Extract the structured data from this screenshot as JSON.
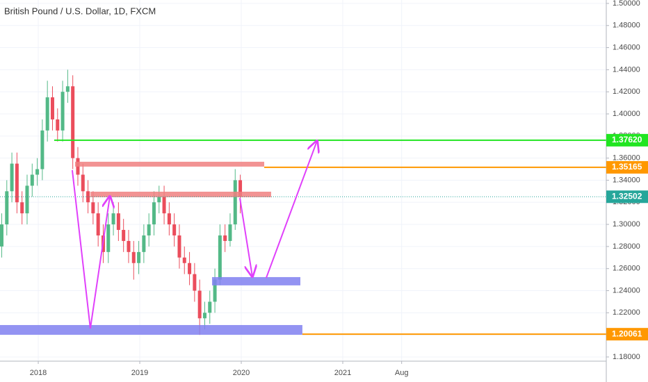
{
  "chart_data": {
    "type": "candlestick",
    "title": "British Pound / U.S. Dollar, 1D, FXCM",
    "xlim": [
      2017.623,
      2023.596
    ],
    "ylim": [
      1.1762,
      1.5031
    ],
    "grid": true,
    "up_color": "#53b987",
    "down_color": "#eb4d5c",
    "xticks": [
      2018,
      2019,
      2020,
      2021,
      {
        "value": 2021.58,
        "label": "Aug"
      }
    ],
    "yticks": [
      {
        "value": 1.18,
        "label": "1.18000"
      },
      {
        "value": 1.2,
        "label": "1.20000"
      },
      {
        "value": 1.22,
        "label": "1.22000"
      },
      {
        "value": 1.24,
        "label": "1.24000"
      },
      {
        "value": 1.26,
        "label": "1.26000"
      },
      {
        "value": 1.28,
        "label": "1.28000"
      },
      {
        "value": 1.3,
        "label": "1.30000"
      },
      {
        "value": 1.32,
        "label": "1.32000"
      },
      {
        "value": 1.34,
        "label": "1.34000"
      },
      {
        "value": 1.36,
        "label": "1.36000"
      },
      {
        "value": 1.38,
        "label": "1.38000"
      },
      {
        "value": 1.4,
        "label": "1.40000"
      },
      {
        "value": 1.42,
        "label": "1.42000"
      },
      {
        "value": 1.44,
        "label": "1.44000"
      },
      {
        "value": 1.46,
        "label": "1.46000"
      },
      {
        "value": 1.48,
        "label": "1.48000"
      },
      {
        "value": 1.5,
        "label": "1.50000"
      }
    ],
    "x": [
      2017.64,
      2017.69,
      2017.74,
      2017.79,
      2017.84,
      2017.89,
      2017.94,
      2017.99,
      2018.04,
      2018.09,
      2018.14,
      2018.19,
      2018.24,
      2018.29,
      2018.34,
      2018.39,
      2018.44,
      2018.49,
      2018.54,
      2018.59,
      2018.64,
      2018.69,
      2018.74,
      2018.79,
      2018.84,
      2018.89,
      2018.94,
      2018.99,
      2019.04,
      2019.09,
      2019.14,
      2019.19,
      2019.24,
      2019.29,
      2019.34,
      2019.39,
      2019.44,
      2019.49,
      2019.54,
      2019.59,
      2019.64,
      2019.69,
      2019.74,
      2019.79,
      2019.84,
      2019.89,
      2019.94,
      2019.99
    ],
    "open": [
      1.28,
      1.3,
      1.33,
      1.355,
      1.32,
      1.31,
      1.335,
      1.345,
      1.35,
      1.385,
      1.415,
      1.395,
      1.385,
      1.42,
      1.425,
      1.36,
      1.345,
      1.33,
      1.32,
      1.31,
      1.29,
      1.275,
      1.3,
      1.31,
      1.295,
      1.285,
      1.275,
      1.265,
      1.275,
      1.29,
      1.3,
      1.32,
      1.325,
      1.31,
      1.3,
      1.29,
      1.27,
      1.265,
      1.255,
      1.24,
      1.215,
      1.22,
      1.23,
      1.25,
      1.29,
      1.285,
      1.3,
      1.34
    ],
    "high": [
      1.31,
      1.34,
      1.365,
      1.365,
      1.33,
      1.345,
      1.355,
      1.36,
      1.395,
      1.43,
      1.425,
      1.405,
      1.43,
      1.44,
      1.435,
      1.37,
      1.355,
      1.34,
      1.33,
      1.32,
      1.3,
      1.31,
      1.32,
      1.32,
      1.305,
      1.295,
      1.285,
      1.285,
      1.3,
      1.31,
      1.33,
      1.335,
      1.335,
      1.32,
      1.31,
      1.3,
      1.28,
      1.275,
      1.265,
      1.25,
      1.23,
      1.24,
      1.26,
      1.3,
      1.3,
      1.31,
      1.35,
      1.345
    ],
    "low": [
      1.27,
      1.29,
      1.32,
      1.31,
      1.3,
      1.3,
      1.325,
      1.335,
      1.34,
      1.375,
      1.385,
      1.375,
      1.375,
      1.41,
      1.35,
      1.335,
      1.32,
      1.31,
      1.3,
      1.28,
      1.265,
      1.265,
      1.29,
      1.285,
      1.275,
      1.265,
      1.25,
      1.255,
      1.265,
      1.28,
      1.29,
      1.31,
      1.3,
      1.29,
      1.28,
      1.26,
      1.255,
      1.245,
      1.23,
      1.2,
      1.205,
      1.21,
      1.22,
      1.245,
      1.275,
      1.28,
      1.295,
      1.31
    ],
    "close": [
      1.3,
      1.33,
      1.355,
      1.32,
      1.31,
      1.335,
      1.345,
      1.35,
      1.385,
      1.415,
      1.395,
      1.385,
      1.42,
      1.425,
      1.36,
      1.345,
      1.33,
      1.32,
      1.31,
      1.29,
      1.275,
      1.3,
      1.31,
      1.295,
      1.285,
      1.275,
      1.265,
      1.275,
      1.29,
      1.3,
      1.32,
      1.325,
      1.31,
      1.3,
      1.29,
      1.27,
      1.265,
      1.255,
      1.24,
      1.215,
      1.22,
      1.23,
      1.25,
      1.29,
      1.285,
      1.3,
      1.34,
      1.325
    ],
    "zones": [
      {
        "x": [
          2018.363,
          2020.226
        ],
        "y": [
          1.3523,
          1.3567
        ],
        "color": "#f08080"
      },
      {
        "x": [
          2018.513,
          2020.294
        ],
        "y": [
          1.3246,
          1.3296
        ],
        "color": "#f08080"
      },
      {
        "x": [
          2019.712,
          2020.582
        ],
        "y": [
          1.2448,
          1.2523
        ],
        "color": "#8080f0"
      },
      {
        "x": [
          2017.623,
          2020.602
        ],
        "y": [
          1.2001,
          1.2089
        ],
        "color": "#8080f0"
      }
    ],
    "arrows": [
      {
        "x": [
          2018.335,
          2018.513,
          2018.705
        ],
        "y": [
          1.3491,
          1.2058,
          1.3252
        ]
      },
      {
        "x": [
          2019.986,
          2020.109
        ],
        "y": [
          1.3239,
          1.2529
        ]
      },
      {
        "x": [
          2020.246,
          2020.746
        ],
        "y": [
          1.2516,
          1.3755
        ]
      }
    ],
    "arrow_color": "#e040fb",
    "levels": [
      {
        "value": 1.3762,
        "label": "1.37620",
        "from": 2018.157,
        "color": "#21e521",
        "style": "solid"
      },
      {
        "value": 1.35165,
        "label": "1.35165",
        "from": 2020.226,
        "color": "#ff9800",
        "style": "solid"
      },
      {
        "value": 1.32502,
        "label": "1.32502",
        "from": 2017.623,
        "color": "#26a69a",
        "style": "dotted"
      },
      {
        "value": 1.20061,
        "label": "1.20061",
        "from": 2020.602,
        "color": "#ff9800",
        "style": "solid"
      }
    ]
  }
}
